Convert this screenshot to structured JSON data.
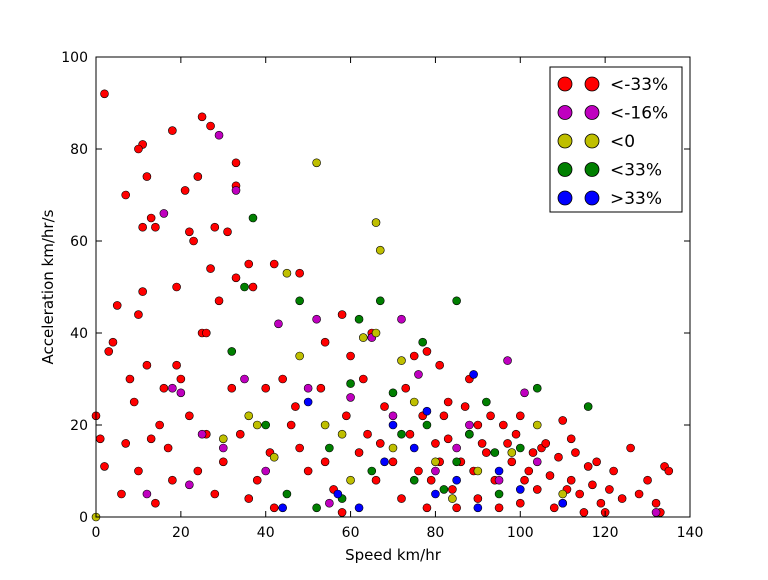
{
  "chart_data": {
    "type": "scatter",
    "title": "",
    "xlabel": "Speed km/hr",
    "ylabel": "Acceleration km/hr/s",
    "xlim": [
      0,
      140
    ],
    "ylim": [
      0,
      100
    ],
    "xticks": [
      "0",
      "20",
      "40",
      "60",
      "80",
      "100",
      "120",
      "140"
    ],
    "yticks": [
      "0",
      "20",
      "40",
      "60",
      "80",
      "100"
    ],
    "xtick_values": [
      0,
      20,
      40,
      60,
      80,
      100,
      120,
      140
    ],
    "ytick_values": [
      0,
      20,
      40,
      60,
      80,
      100
    ],
    "grid": false,
    "legend_position": "top-right",
    "series": [
      {
        "name": "<-33%",
        "color": "#ff0000",
        "points": [
          [
            2,
            92
          ],
          [
            25,
            87
          ],
          [
            11,
            81
          ],
          [
            10,
            80
          ],
          [
            12,
            74
          ],
          [
            24,
            74
          ],
          [
            27,
            85
          ],
          [
            18,
            84
          ],
          [
            7,
            70
          ],
          [
            21,
            71
          ],
          [
            33,
            72
          ],
          [
            33,
            77
          ],
          [
            22,
            62
          ],
          [
            23,
            60
          ],
          [
            28,
            63
          ],
          [
            31,
            62
          ],
          [
            13,
            65
          ],
          [
            14,
            63
          ],
          [
            11,
            63
          ],
          [
            11,
            49
          ],
          [
            5,
            46
          ],
          [
            19,
            50
          ],
          [
            29,
            47
          ],
          [
            27,
            54
          ],
          [
            33,
            52
          ],
          [
            36,
            55
          ],
          [
            42,
            55
          ],
          [
            37,
            50
          ],
          [
            48,
            53
          ],
          [
            3,
            36
          ],
          [
            4,
            38
          ],
          [
            10,
            44
          ],
          [
            0,
            22
          ],
          [
            1,
            17
          ],
          [
            2,
            11
          ],
          [
            25,
            40
          ],
          [
            26,
            40
          ],
          [
            40,
            28
          ],
          [
            47,
            24
          ],
          [
            58,
            44
          ],
          [
            54,
            38
          ],
          [
            60,
            35
          ],
          [
            65,
            40
          ],
          [
            75,
            35
          ],
          [
            78,
            36
          ],
          [
            81,
            33
          ],
          [
            88,
            30
          ],
          [
            83,
            25
          ],
          [
            90,
            20
          ],
          [
            100,
            22
          ],
          [
            105,
            15
          ],
          [
            112,
            17
          ],
          [
            118,
            12
          ],
          [
            122,
            10
          ],
          [
            128,
            5
          ],
          [
            130,
            8
          ],
          [
            133,
            1
          ],
          [
            134,
            11
          ],
          [
            135,
            10
          ],
          [
            132,
            3
          ],
          [
            126,
            15
          ],
          [
            110,
            21
          ],
          [
            8,
            30
          ],
          [
            9,
            25
          ],
          [
            12,
            33
          ],
          [
            15,
            20
          ],
          [
            17,
            15
          ],
          [
            20,
            30
          ],
          [
            22,
            22
          ],
          [
            24,
            10
          ],
          [
            28,
            5
          ],
          [
            30,
            12
          ],
          [
            34,
            18
          ],
          [
            38,
            8
          ],
          [
            41,
            14
          ],
          [
            44,
            30
          ],
          [
            46,
            20
          ],
          [
            50,
            10
          ],
          [
            53,
            28
          ],
          [
            56,
            6
          ],
          [
            59,
            22
          ],
          [
            62,
            14
          ],
          [
            64,
            18
          ],
          [
            66,
            8
          ],
          [
            68,
            24
          ],
          [
            70,
            12
          ],
          [
            72,
            4
          ],
          [
            74,
            18
          ],
          [
            76,
            10
          ],
          [
            78,
            2
          ],
          [
            80,
            16
          ],
          [
            82,
            22
          ],
          [
            84,
            6
          ],
          [
            86,
            12
          ],
          [
            88,
            18
          ],
          [
            90,
            4
          ],
          [
            92,
            14
          ],
          [
            94,
            8
          ],
          [
            96,
            20
          ],
          [
            98,
            12
          ],
          [
            100,
            3
          ],
          [
            102,
            10
          ],
          [
            104,
            6
          ],
          [
            106,
            16
          ],
          [
            108,
            2
          ],
          [
            112,
            8
          ],
          [
            114,
            5
          ],
          [
            116,
            11
          ],
          [
            119,
            3
          ],
          [
            121,
            6
          ],
          [
            124,
            4
          ],
          [
            6,
            5
          ],
          [
            10,
            10
          ],
          [
            14,
            3
          ],
          [
            18,
            8
          ],
          [
            26,
            18
          ],
          [
            32,
            28
          ],
          [
            36,
            4
          ],
          [
            42,
            2
          ],
          [
            48,
            15
          ],
          [
            54,
            12
          ],
          [
            58,
            1
          ],
          [
            63,
            30
          ],
          [
            67,
            16
          ],
          [
            73,
            28
          ],
          [
            77,
            22
          ],
          [
            79,
            8
          ],
          [
            81,
            12
          ],
          [
            83,
            17
          ],
          [
            85,
            2
          ],
          [
            87,
            24
          ],
          [
            89,
            10
          ],
          [
            91,
            16
          ],
          [
            93,
            22
          ],
          [
            95,
            2
          ],
          [
            97,
            16
          ],
          [
            99,
            18
          ],
          [
            101,
            8
          ],
          [
            103,
            14
          ],
          [
            107,
            9
          ],
          [
            109,
            13
          ],
          [
            111,
            6
          ],
          [
            113,
            14
          ],
          [
            115,
            1
          ],
          [
            117,
            7
          ],
          [
            120,
            1
          ],
          [
            16,
            28
          ],
          [
            19,
            33
          ],
          [
            13,
            17
          ],
          [
            7,
            16
          ]
        ]
      },
      {
        "name": "<-16%",
        "color": "#bf00bf",
        "points": [
          [
            29,
            83
          ],
          [
            33,
            71
          ],
          [
            16,
            66
          ],
          [
            43,
            42
          ],
          [
            52,
            43
          ],
          [
            65,
            39
          ],
          [
            72,
            43
          ],
          [
            97,
            34
          ],
          [
            20,
            27
          ],
          [
            18,
            28
          ],
          [
            35,
            30
          ],
          [
            50,
            28
          ],
          [
            60,
            26
          ],
          [
            70,
            22
          ],
          [
            85,
            15
          ],
          [
            101,
            27
          ],
          [
            30,
            15
          ],
          [
            40,
            10
          ],
          [
            80,
            10
          ],
          [
            95,
            8
          ],
          [
            132,
            1
          ],
          [
            25,
            18
          ],
          [
            12,
            5
          ],
          [
            55,
            3
          ],
          [
            76,
            31
          ],
          [
            88,
            20
          ],
          [
            104,
            12
          ],
          [
            22,
            7
          ]
        ]
      },
      {
        "name": "<0",
        "color": "#bfbf00",
        "points": [
          [
            0,
            0
          ],
          [
            52,
            77
          ],
          [
            66,
            64
          ],
          [
            67,
            58
          ],
          [
            45,
            53
          ],
          [
            48,
            35
          ],
          [
            63,
            39
          ],
          [
            66,
            40
          ],
          [
            72,
            34
          ],
          [
            36,
            22
          ],
          [
            38,
            20
          ],
          [
            42,
            13
          ],
          [
            54,
            20
          ],
          [
            58,
            18
          ],
          [
            70,
            15
          ],
          [
            80,
            12
          ],
          [
            90,
            10
          ],
          [
            104,
            20
          ],
          [
            110,
            5
          ],
          [
            75,
            25
          ],
          [
            30,
            17
          ],
          [
            60,
            8
          ],
          [
            84,
            4
          ],
          [
            98,
            14
          ]
        ]
      },
      {
        "name": "<33%",
        "color": "#007f00",
        "points": [
          [
            37,
            65
          ],
          [
            48,
            47
          ],
          [
            67,
            47
          ],
          [
            85,
            47
          ],
          [
            32,
            36
          ],
          [
            35,
            50
          ],
          [
            62,
            43
          ],
          [
            77,
            38
          ],
          [
            60,
            29
          ],
          [
            70,
            27
          ],
          [
            104,
            28
          ],
          [
            116,
            24
          ],
          [
            40,
            20
          ],
          [
            55,
            15
          ],
          [
            65,
            10
          ],
          [
            75,
            8
          ],
          [
            85,
            12
          ],
          [
            95,
            5
          ],
          [
            100,
            15
          ],
          [
            110,
            3
          ],
          [
            78,
            20
          ],
          [
            88,
            18
          ],
          [
            45,
            5
          ],
          [
            52,
            2
          ],
          [
            92,
            25
          ],
          [
            82,
            6
          ],
          [
            94,
            14
          ],
          [
            72,
            18
          ],
          [
            58,
            4
          ]
        ]
      },
      {
        "name": ">33%",
        "color": "#0000ff",
        "points": [
          [
            89,
            31
          ],
          [
            70,
            20
          ],
          [
            75,
            15
          ],
          [
            80,
            5
          ],
          [
            85,
            8
          ],
          [
            90,
            2
          ],
          [
            95,
            10
          ],
          [
            100,
            6
          ],
          [
            57,
            5
          ],
          [
            62,
            2
          ],
          [
            68,
            12
          ],
          [
            44,
            2
          ],
          [
            110,
            3
          ],
          [
            50,
            25
          ],
          [
            78,
            23
          ]
        ]
      }
    ]
  }
}
